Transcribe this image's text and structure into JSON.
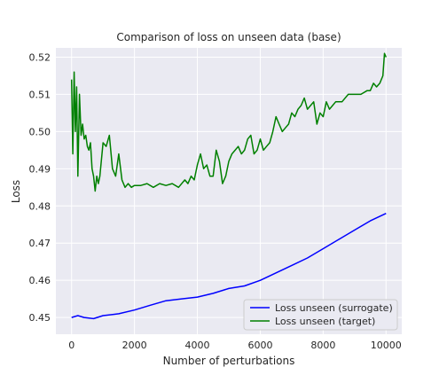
{
  "chart_data": {
    "type": "line",
    "title": "Comparison of loss on unseen data (base)",
    "xlabel": "Number of perturbations",
    "ylabel": "Loss",
    "xlim": [
      -500,
      10500
    ],
    "ylim": [
      0.4455,
      0.5225
    ],
    "xticks": [
      0,
      2000,
      4000,
      6000,
      8000,
      10000
    ],
    "yticks": [
      0.45,
      0.46,
      0.47,
      0.48,
      0.49,
      0.5,
      0.51,
      0.52
    ],
    "grid": true,
    "legend": "lower-right",
    "series": [
      {
        "name": "Loss unseen (surrogate)",
        "color": "#0000ff",
        "x": [
          0,
          200,
          400,
          700,
          1000,
          1500,
          2000,
          2500,
          3000,
          3500,
          4000,
          4500,
          5000,
          5500,
          6000,
          6500,
          7000,
          7500,
          8000,
          8500,
          9000,
          9500,
          10000
        ],
        "y": [
          0.45,
          0.4505,
          0.45,
          0.4497,
          0.4505,
          0.451,
          0.452,
          0.4533,
          0.4545,
          0.455,
          0.4555,
          0.4565,
          0.4578,
          0.4585,
          0.46,
          0.462,
          0.464,
          0.466,
          0.4685,
          0.471,
          0.4735,
          0.476,
          0.478
        ]
      },
      {
        "name": "Loss unseen (target)",
        "color": "#008000",
        "x": [
          0,
          40,
          80,
          120,
          160,
          200,
          250,
          300,
          350,
          400,
          450,
          500,
          550,
          600,
          650,
          700,
          750,
          800,
          850,
          900,
          1000,
          1100,
          1200,
          1300,
          1400,
          1500,
          1600,
          1700,
          1800,
          1900,
          2000,
          2200,
          2400,
          2600,
          2800,
          3000,
          3200,
          3400,
          3600,
          3700,
          3800,
          3900,
          4000,
          4100,
          4200,
          4300,
          4400,
          4500,
          4600,
          4700,
          4800,
          4900,
          5000,
          5100,
          5200,
          5300,
          5400,
          5500,
          5600,
          5700,
          5800,
          5900,
          6000,
          6100,
          6200,
          6300,
          6400,
          6500,
          6600,
          6700,
          6800,
          6900,
          7000,
          7100,
          7200,
          7300,
          7400,
          7500,
          7600,
          7700,
          7800,
          7900,
          8000,
          8100,
          8200,
          8300,
          8400,
          8600,
          8800,
          9000,
          9200,
          9400,
          9500,
          9600,
          9700,
          9800,
          9900,
          9950,
          10000
        ],
        "y": [
          0.514,
          0.494,
          0.516,
          0.5,
          0.512,
          0.488,
          0.51,
          0.499,
          0.502,
          0.498,
          0.499,
          0.496,
          0.495,
          0.497,
          0.49,
          0.488,
          0.484,
          0.488,
          0.486,
          0.488,
          0.497,
          0.496,
          0.499,
          0.49,
          0.488,
          0.494,
          0.487,
          0.485,
          0.486,
          0.485,
          0.4855,
          0.4855,
          0.486,
          0.485,
          0.486,
          0.4855,
          0.486,
          0.485,
          0.487,
          0.486,
          0.488,
          0.487,
          0.491,
          0.494,
          0.49,
          0.491,
          0.488,
          0.488,
          0.495,
          0.492,
          0.486,
          0.488,
          0.492,
          0.494,
          0.495,
          0.496,
          0.494,
          0.495,
          0.498,
          0.499,
          0.494,
          0.495,
          0.498,
          0.495,
          0.496,
          0.497,
          0.5,
          0.504,
          0.502,
          0.5,
          0.501,
          0.502,
          0.505,
          0.504,
          0.506,
          0.507,
          0.509,
          0.506,
          0.507,
          0.508,
          0.502,
          0.505,
          0.504,
          0.508,
          0.506,
          0.507,
          0.508,
          0.508,
          0.51,
          0.51,
          0.51,
          0.511,
          0.511,
          0.513,
          0.512,
          0.513,
          0.515,
          0.521,
          0.52
        ]
      }
    ]
  }
}
